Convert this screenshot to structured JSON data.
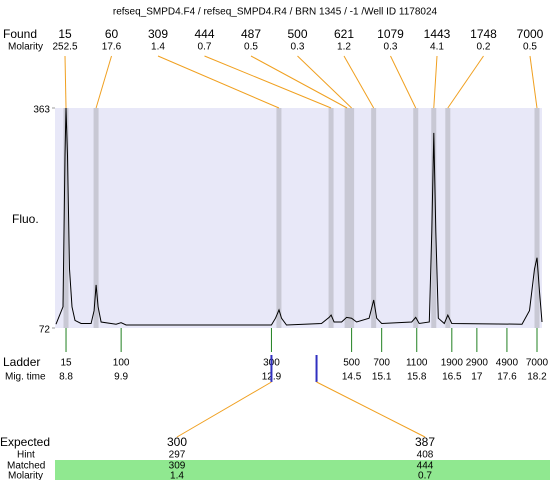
{
  "header": {
    "title": "refseq_SMPD4.F4 / refseq_SMPD4.R4 / BRN 1345 / -1 /Well ID 1178024"
  },
  "chart_data": {
    "type": "electropherogram",
    "y_label": "Fluo.",
    "ylim": [
      72,
      363
    ],
    "yticks": [
      72,
      363
    ],
    "xlim": [
      8.58,
      18.3
    ],
    "found": {
      "label": "Found",
      "molarity_label": "Molarity",
      "sizes": [
        15,
        60,
        309,
        444,
        487,
        500,
        621,
        1079,
        1443,
        1748,
        7000
      ],
      "molarity": [
        252.5,
        17.6,
        1.4,
        0.7,
        0.5,
        0.3,
        1.2,
        0.3,
        4.1,
        0.2,
        0.5
      ],
      "times": [
        8.8,
        9.4,
        13.05,
        14.09,
        14.41,
        14.5,
        14.94,
        15.78,
        16.14,
        16.42,
        18.2
      ]
    },
    "ladder": {
      "label": "Ladder",
      "time_label": "Mig. time",
      "sizes": [
        15,
        100,
        300,
        500,
        700,
        1100,
        1900,
        2900,
        4900,
        7000
      ],
      "times": [
        8.8,
        9.9,
        12.9,
        14.5,
        15.1,
        15.8,
        16.5,
        17,
        17.6,
        18.2
      ]
    },
    "trace": {
      "x": [
        8.6,
        8.74,
        8.78,
        8.8,
        8.83,
        8.87,
        8.92,
        8.98,
        9.1,
        9.3,
        9.36,
        9.4,
        9.44,
        9.5,
        9.8,
        9.9,
        10.0,
        12.9,
        12.98,
        13.05,
        13.1,
        13.2,
        13.9,
        14.05,
        14.09,
        14.15,
        14.3,
        14.4,
        14.5,
        14.6,
        14.85,
        14.94,
        15.0,
        15.1,
        15.7,
        15.78,
        15.85,
        16.05,
        16.1,
        16.14,
        16.18,
        16.23,
        16.35,
        16.42,
        16.5,
        17.9,
        18.05,
        18.15,
        18.2,
        18.25,
        18.3
      ],
      "y": [
        77,
        100,
        300,
        363,
        300,
        150,
        100,
        82,
        78,
        78,
        95,
        129,
        100,
        80,
        77,
        79,
        76,
        76,
        85,
        96,
        85,
        76,
        78,
        86,
        89,
        80,
        80,
        86,
        85,
        80,
        85,
        109,
        85,
        78,
        80,
        86,
        78,
        80,
        200,
        330,
        200,
        85,
        78,
        89,
        78,
        77,
        95,
        150,
        165,
        120,
        80
      ]
    },
    "expected": {
      "label": "Expected",
      "hint_label": "Hint",
      "matched_label": "Matched",
      "molarity_label": "Molarity",
      "values": [
        300,
        387
      ],
      "hints": [
        297,
        408
      ],
      "matched": [
        309,
        444
      ],
      "molarity": [
        1.4,
        0.7
      ],
      "times": [
        12.9,
        13.8
      ]
    }
  }
}
